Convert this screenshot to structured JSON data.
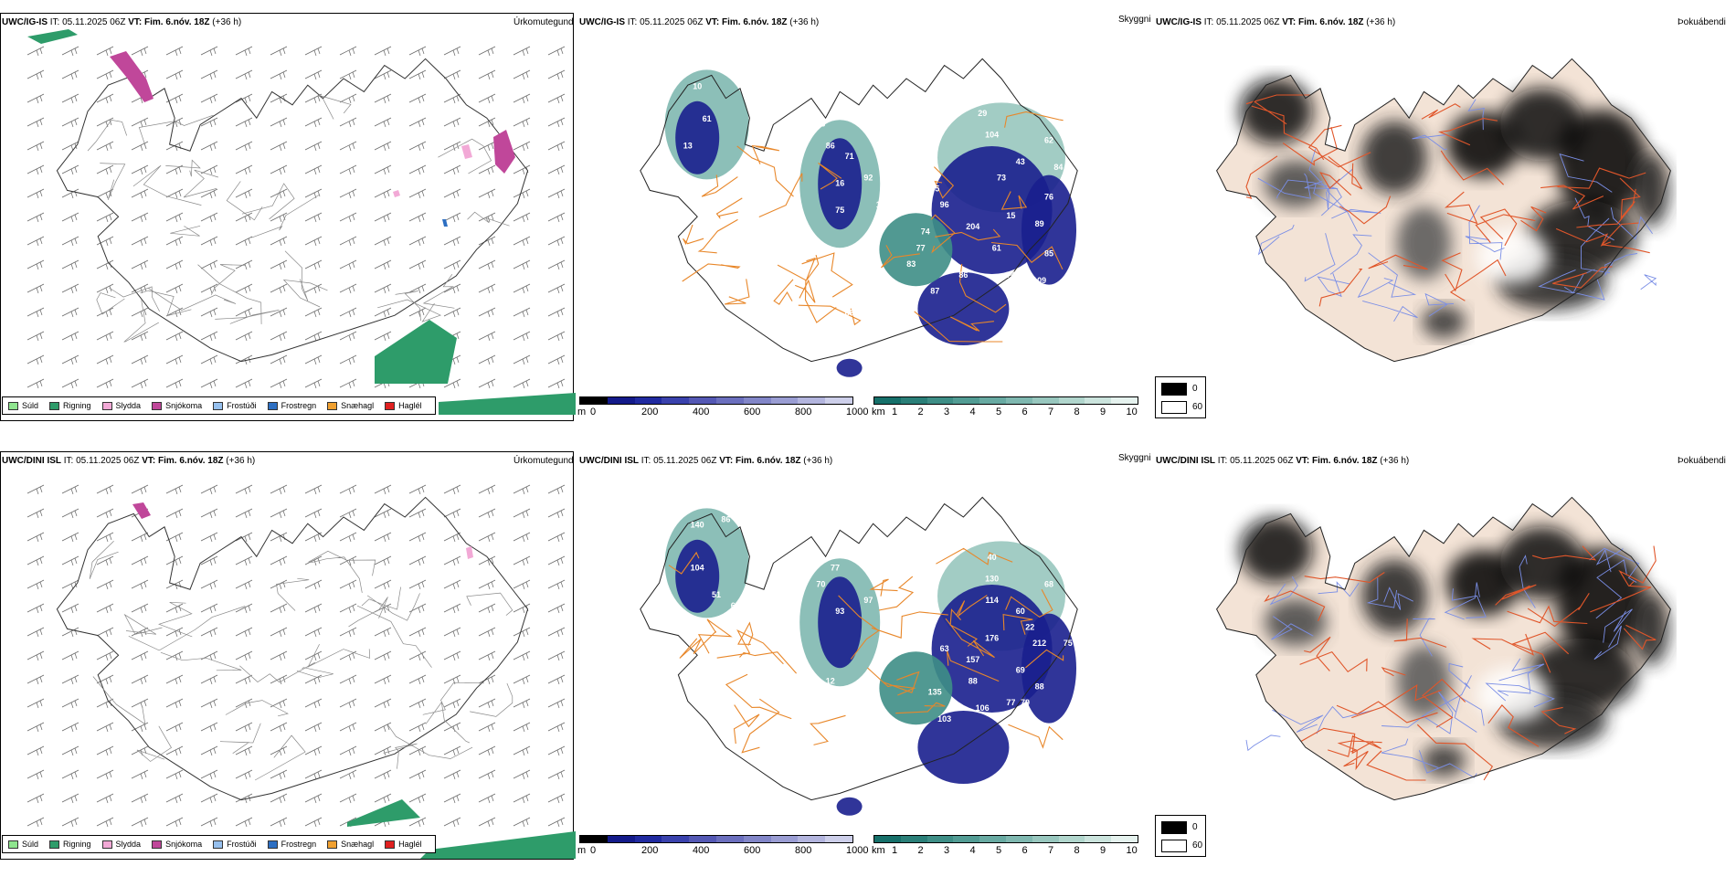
{
  "rows": [
    {
      "model": "UWC/IG-IS",
      "it_label": "IT:",
      "it_value": "05.11.2025 06Z",
      "vt_label": "VT:",
      "vt_value": "Fim. 6.nóv. 18Z",
      "lead": "(+36 h)",
      "panel1_title": "Úrkomutegund",
      "panel2_title": "Skyggni",
      "panel3_title": "Þokuábendi",
      "visibility_labels": [
        "10",
        "61",
        "13",
        "63",
        "86",
        "71",
        "92",
        "16",
        "113",
        "75",
        "29",
        "104",
        "62",
        "45",
        "96",
        "15",
        "204",
        "73",
        "84",
        "76",
        "89",
        "74",
        "43",
        "61",
        "85",
        "86",
        "74",
        "87",
        "18",
        "77",
        "83",
        "109",
        "63"
      ]
    },
    {
      "model": "UWC/DINI ISL",
      "it_label": "IT:",
      "it_value": "05.11.2025 06Z",
      "vt_label": "VT:",
      "vt_value": "Fim. 6.nóv. 18Z",
      "lead": "(+36 h)",
      "panel1_title": "Úrkomutegund",
      "panel2_title": "Skyggni",
      "panel3_title": "Þokuábendi",
      "visibility_labels": [
        "140",
        "86",
        "104",
        "51",
        "65",
        "70",
        "77",
        "93",
        "97",
        "40",
        "130",
        "68",
        "114",
        "176",
        "22",
        "212",
        "60",
        "63",
        "75",
        "88",
        "157",
        "69",
        "88",
        "135",
        "106",
        "77",
        "79",
        "103",
        "12"
      ]
    }
  ],
  "precip_legend": [
    {
      "label": "Súld",
      "color": "#8fe58f"
    },
    {
      "label": "Rigning",
      "color": "#2e9c6a"
    },
    {
      "label": "Slydda",
      "color": "#f2a9d6"
    },
    {
      "label": "Snjókoma",
      "color": "#c0479a"
    },
    {
      "label": "Frostúði",
      "color": "#96c0ee"
    },
    {
      "label": "Frostregn",
      "color": "#2d6fc2"
    },
    {
      "label": "Snæhagl",
      "color": "#f0a030"
    },
    {
      "label": "Haglél",
      "color": "#e02020"
    }
  ],
  "height_scale": {
    "unit": "m",
    "ticks": [
      "0",
      "200",
      "400",
      "600",
      "800",
      "1000"
    ],
    "colors": [
      "#000000",
      "#131a8a",
      "#202aa0",
      "#3a42ad",
      "#5458b4",
      "#6b6fbe",
      "#8286c8",
      "#9a9dd3",
      "#b3b5de",
      "#cdcfea"
    ]
  },
  "km_scale": {
    "unit": "km",
    "ticks": [
      "1",
      "2",
      "3",
      "4",
      "5",
      "6",
      "7",
      "8",
      "9",
      "10"
    ],
    "colors": [
      "#16706a",
      "#2a7f78",
      "#3e8e86",
      "#529c94",
      "#68aaa2",
      "#7fb8b0",
      "#98c7be",
      "#b1d6cd",
      "#cbe4dd",
      "#e5f2ee"
    ]
  },
  "cloud_legend": {
    "items": [
      {
        "label": "0",
        "color": "#000000"
      },
      {
        "label": "60",
        "color": "#ffffff"
      }
    ]
  }
}
